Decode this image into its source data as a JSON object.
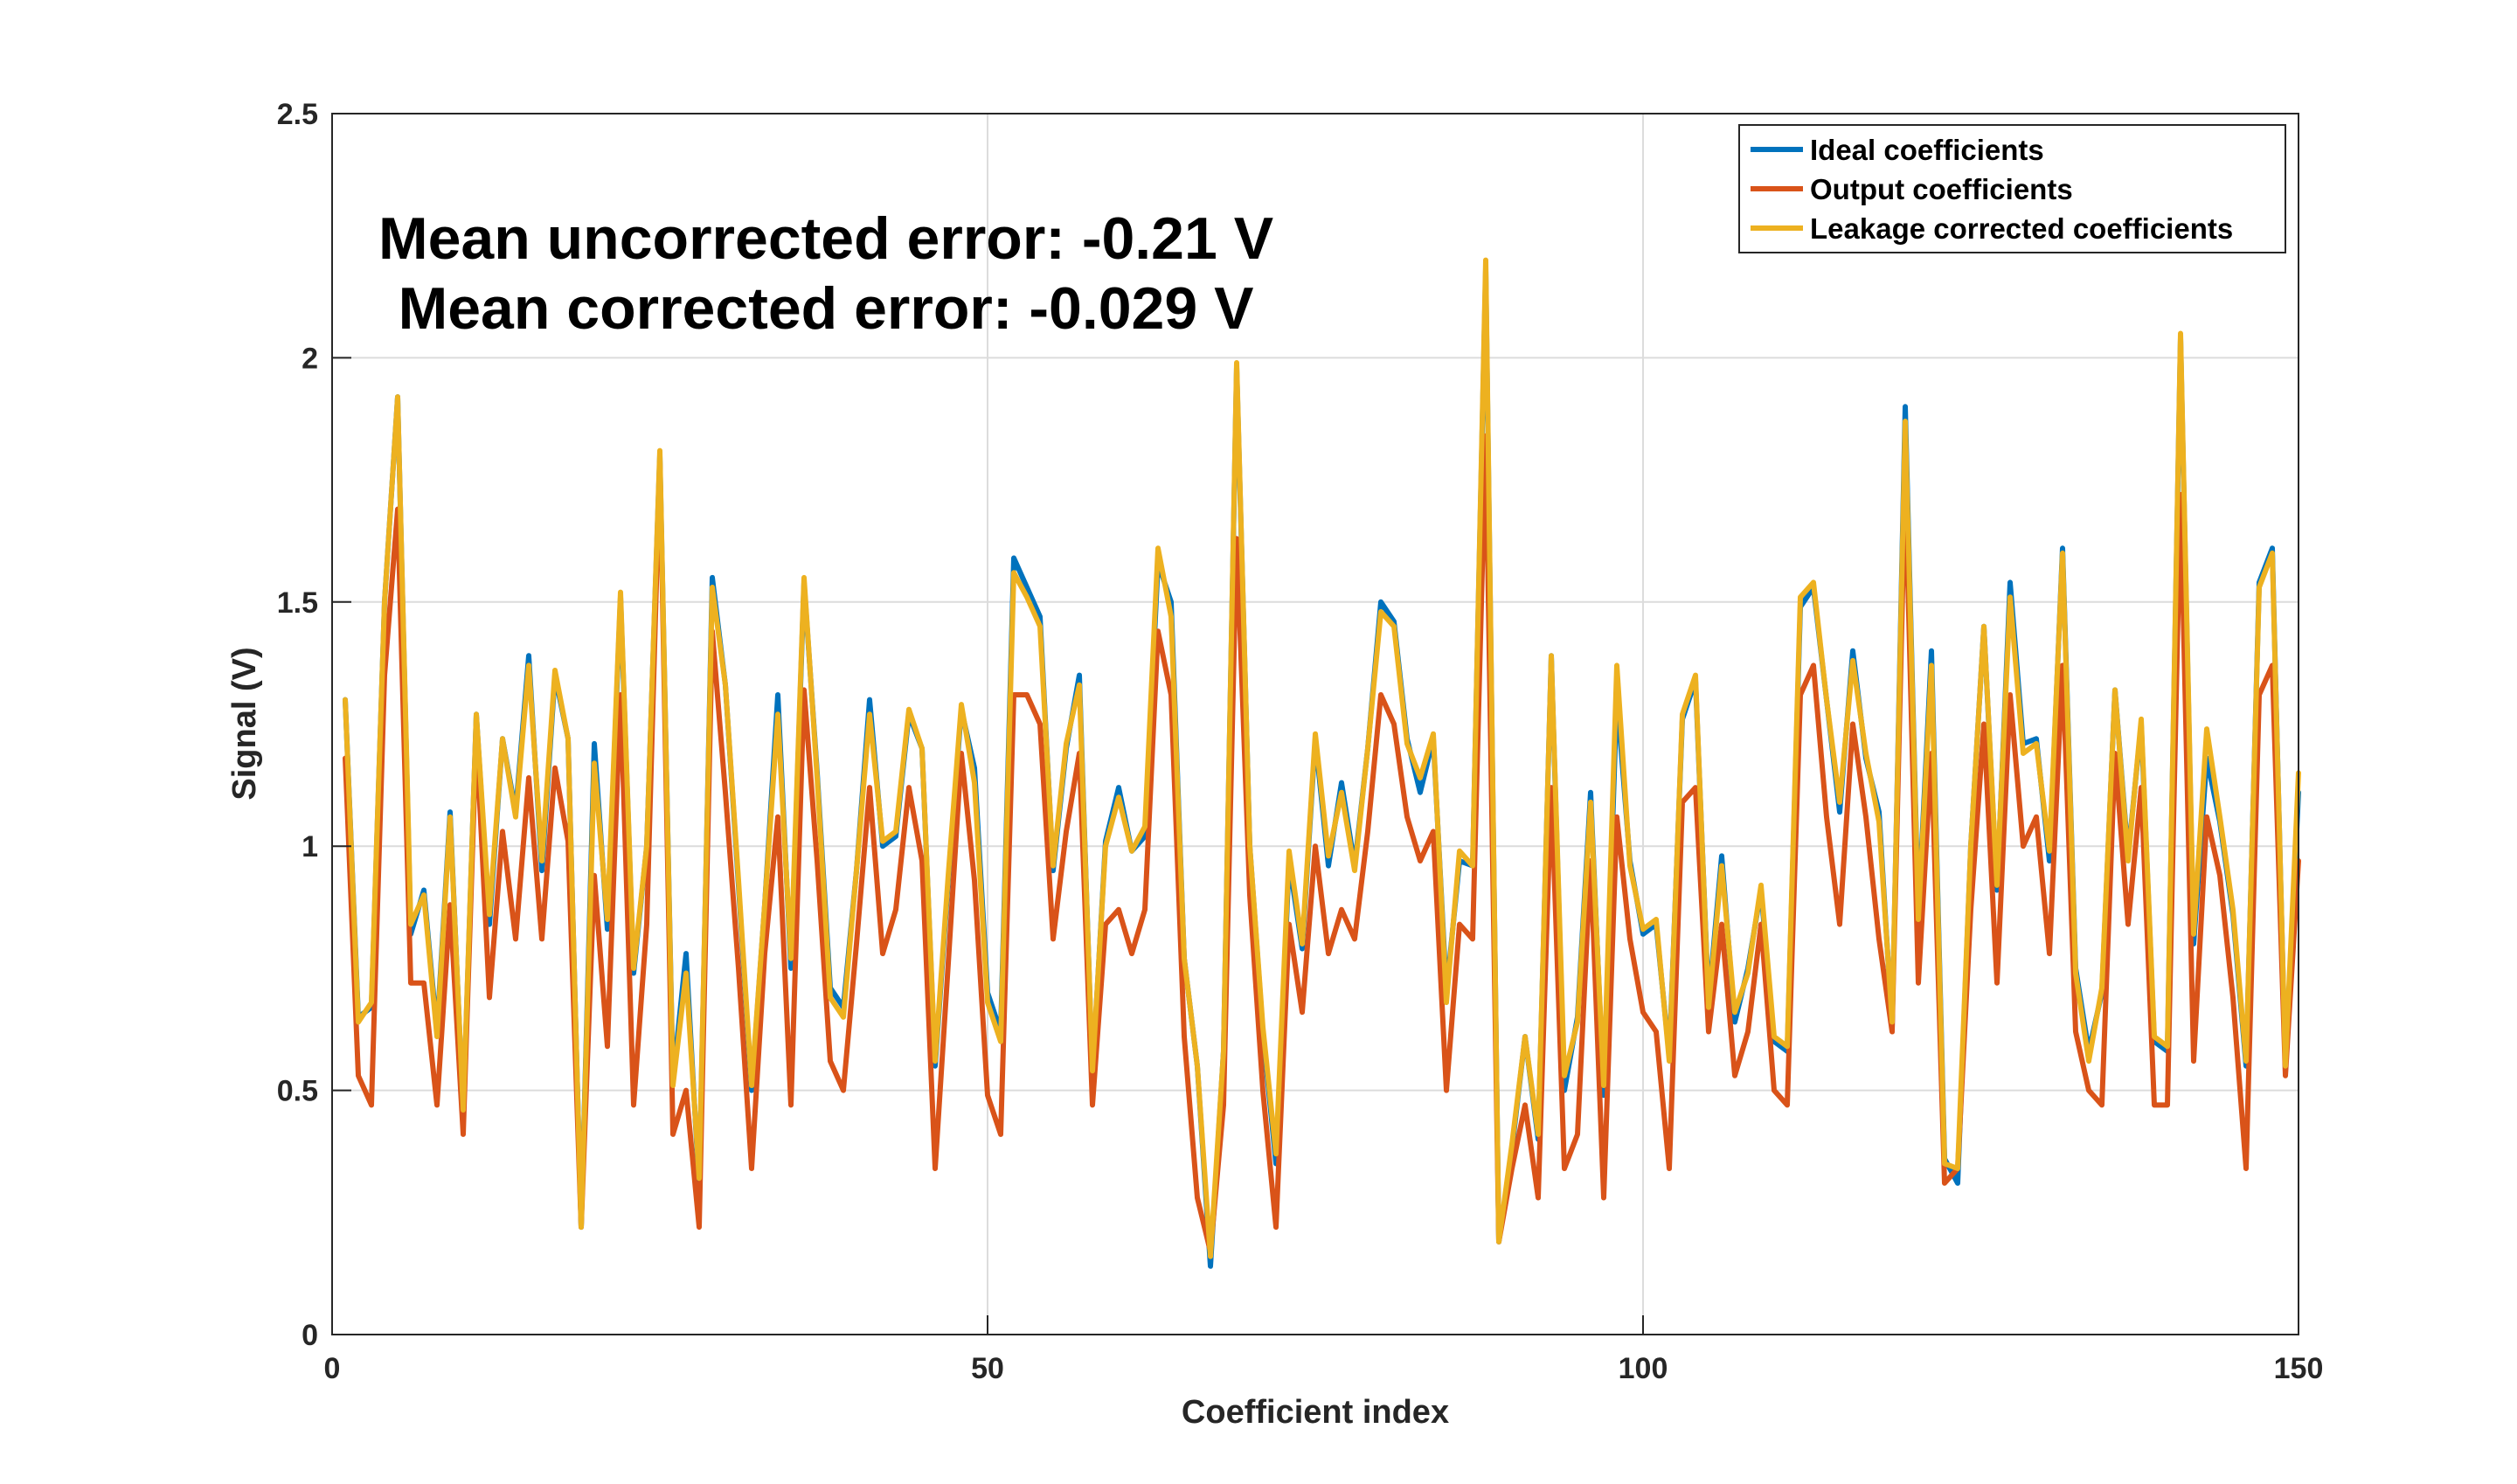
{
  "chart_data": {
    "type": "line",
    "xlabel": "Coefficient index",
    "ylabel": "Signal (V)",
    "xlim": [
      0,
      150
    ],
    "ylim": [
      0,
      2.5
    ],
    "xticks": [
      0,
      50,
      100,
      150
    ],
    "yticks": [
      0,
      0.5,
      1,
      1.5,
      2,
      2.5
    ],
    "xtick_labels": [
      "0",
      "50",
      "100",
      "150"
    ],
    "ytick_labels": [
      "0",
      "0.5",
      "1",
      "1.5",
      "2",
      "2.5"
    ],
    "grid": true,
    "legend_position": "top-right",
    "annotations": [
      "Mean uncorrected error: -0.21 V",
      "Mean corrected error: -0.029 V"
    ],
    "x": [
      1,
      2,
      3,
      4,
      5,
      6,
      7,
      8,
      9,
      10,
      11,
      12,
      13,
      14,
      15,
      16,
      17,
      18,
      19,
      20,
      21,
      22,
      23,
      24,
      25,
      26,
      27,
      28,
      29,
      30,
      31,
      32,
      33,
      34,
      35,
      36,
      37,
      38,
      39,
      40,
      41,
      42,
      43,
      44,
      45,
      46,
      47,
      48,
      49,
      50,
      51,
      52,
      53,
      54,
      55,
      56,
      57,
      58,
      59,
      60,
      61,
      62,
      63,
      64,
      65,
      66,
      67,
      68,
      69,
      70,
      71,
      72,
      73,
      74,
      75,
      76,
      77,
      78,
      79,
      80,
      81,
      82,
      83,
      84,
      85,
      86,
      87,
      88,
      89,
      90,
      91,
      92,
      93,
      94,
      95,
      96,
      97,
      98,
      99,
      100,
      101,
      102,
      103,
      104,
      105,
      106,
      107,
      108,
      109,
      110,
      111,
      112,
      113,
      114,
      115,
      116,
      117,
      118,
      119,
      120,
      121,
      122,
      123,
      124,
      125,
      126,
      127,
      128,
      129,
      130,
      131,
      132,
      133,
      134,
      135,
      136,
      137,
      138,
      139,
      140,
      141,
      142,
      143,
      144,
      145,
      146,
      147,
      148,
      149,
      150
    ],
    "series": [
      {
        "name": "Ideal coefficients",
        "color": "#0072BD",
        "values": [
          1.3,
          0.65,
          0.67,
          1.5,
          1.92,
          0.82,
          0.91,
          0.62,
          1.07,
          0.45,
          1.27,
          0.84,
          1.22,
          1.07,
          1.39,
          0.95,
          1.35,
          1.22,
          0.22,
          1.21,
          0.83,
          1.51,
          0.74,
          1.0,
          1.8,
          0.52,
          0.78,
          0.3,
          1.55,
          1.33,
          0.92,
          0.5,
          0.88,
          1.31,
          0.75,
          1.54,
          1.15,
          0.71,
          0.67,
          0.95,
          1.3,
          1.0,
          1.02,
          1.27,
          1.2,
          0.55,
          0.93,
          1.28,
          1.16,
          0.7,
          0.62,
          1.59,
          1.53,
          1.47,
          0.95,
          1.2,
          1.35,
          0.53,
          1.01,
          1.12,
          0.99,
          1.02,
          1.58,
          1.5,
          0.77,
          0.55,
          0.14,
          0.58,
          1.98,
          1.0,
          0.62,
          0.35,
          0.97,
          0.79,
          1.22,
          0.96,
          1.13,
          0.96,
          1.2,
          1.5,
          1.46,
          1.22,
          1.11,
          1.22,
          0.7,
          0.97,
          0.96,
          2.18,
          0.19,
          0.38,
          0.61,
          0.4,
          1.39,
          0.5,
          0.65,
          1.11,
          0.49,
          1.31,
          0.97,
          0.82,
          0.84,
          0.57,
          1.26,
          1.34,
          0.68,
          0.98,
          0.64,
          0.75,
          0.91,
          0.6,
          0.58,
          1.49,
          1.53,
          1.3,
          1.07,
          1.4,
          1.18,
          1.07,
          0.63,
          1.9,
          0.86,
          1.4,
          0.36,
          0.31,
          1.0,
          1.45,
          0.91,
          1.54,
          1.21,
          1.22,
          0.97,
          1.61,
          0.75,
          0.58,
          0.7,
          1.32,
          0.98,
          1.25,
          0.6,
          0.58,
          2.04,
          0.8,
          1.18,
          1.05,
          0.86,
          0.55,
          1.54,
          1.61,
          0.54,
          1.11
        ]
      },
      {
        "name": "Output coefficients",
        "color": "#D95319",
        "values": [
          1.18,
          0.53,
          0.47,
          1.35,
          1.69,
          0.72,
          0.72,
          0.47,
          0.88,
          0.41,
          1.23,
          0.69,
          1.03,
          0.81,
          1.14,
          0.81,
          1.16,
          1.01,
          0.22,
          0.94,
          0.59,
          1.31,
          0.47,
          0.84,
          1.79,
          0.41,
          0.5,
          0.22,
          1.44,
          1.11,
          0.75,
          0.34,
          0.78,
          1.06,
          0.47,
          1.32,
          0.97,
          0.56,
          0.5,
          0.8,
          1.12,
          0.78,
          0.87,
          1.12,
          0.97,
          0.34,
          0.76,
          1.19,
          0.93,
          0.49,
          0.41,
          1.31,
          1.31,
          1.25,
          0.81,
          1.03,
          1.19,
          0.47,
          0.84,
          0.87,
          0.78,
          0.87,
          1.44,
          1.31,
          0.61,
          0.28,
          0.17,
          0.47,
          1.63,
          0.9,
          0.5,
          0.22,
          0.84,
          0.66,
          1.0,
          0.78,
          0.87,
          0.81,
          1.03,
          1.31,
          1.25,
          1.06,
          0.97,
          1.03,
          0.5,
          0.84,
          0.81,
          1.84,
          0.19,
          0.34,
          0.47,
          0.28,
          1.12,
          0.34,
          0.41,
          0.97,
          0.28,
          1.06,
          0.81,
          0.66,
          0.62,
          0.34,
          1.09,
          1.12,
          0.62,
          0.84,
          0.53,
          0.62,
          0.84,
          0.5,
          0.47,
          1.31,
          1.37,
          1.06,
          0.84,
          1.25,
          1.06,
          0.81,
          0.62,
          1.75,
          0.72,
          1.19,
          0.31,
          0.34,
          0.87,
          1.25,
          0.72,
          1.31,
          1.0,
          1.06,
          0.78,
          1.37,
          0.62,
          0.5,
          0.47,
          1.19,
          0.84,
          1.12,
          0.47,
          0.47,
          1.72,
          0.56,
          1.06,
          0.94,
          0.69,
          0.34,
          1.31,
          1.37,
          0.53,
          0.97
        ]
      },
      {
        "name": "Leakage corrected coefficients",
        "color": "#EDB120",
        "values": [
          1.3,
          0.64,
          0.68,
          1.5,
          1.92,
          0.84,
          0.9,
          0.61,
          1.06,
          0.46,
          1.27,
          0.86,
          1.22,
          1.06,
          1.37,
          0.97,
          1.36,
          1.22,
          0.22,
          1.17,
          0.85,
          1.52,
          0.75,
          1.0,
          1.81,
          0.51,
          0.74,
          0.32,
          1.53,
          1.33,
          0.93,
          0.51,
          0.88,
          1.27,
          0.77,
          1.55,
          1.14,
          0.69,
          0.65,
          0.95,
          1.27,
          1.01,
          1.03,
          1.28,
          1.2,
          0.56,
          0.94,
          1.29,
          1.13,
          0.68,
          0.6,
          1.56,
          1.51,
          1.45,
          0.96,
          1.21,
          1.33,
          0.54,
          1.0,
          1.1,
          0.99,
          1.04,
          1.61,
          1.47,
          0.77,
          0.55,
          0.16,
          0.58,
          1.99,
          1.0,
          0.63,
          0.37,
          0.99,
          0.8,
          1.23,
          0.98,
          1.11,
          0.95,
          1.2,
          1.48,
          1.45,
          1.21,
          1.14,
          1.23,
          0.68,
          0.99,
          0.96,
          2.2,
          0.19,
          0.39,
          0.61,
          0.41,
          1.39,
          0.53,
          0.64,
          1.09,
          0.51,
          1.37,
          0.96,
          0.83,
          0.85,
          0.56,
          1.27,
          1.35,
          0.67,
          0.96,
          0.66,
          0.74,
          0.92,
          0.61,
          0.59,
          1.51,
          1.54,
          1.3,
          1.09,
          1.38,
          1.19,
          1.05,
          0.64,
          1.87,
          0.85,
          1.37,
          0.35,
          0.34,
          1.0,
          1.45,
          0.92,
          1.51,
          1.19,
          1.21,
          0.99,
          1.6,
          0.74,
          0.56,
          0.71,
          1.32,
          0.97,
          1.26,
          0.61,
          0.59,
          2.05,
          0.82,
          1.24,
          1.06,
          0.87,
          0.56,
          1.53,
          1.6,
          0.55,
          1.15
        ]
      }
    ]
  }
}
